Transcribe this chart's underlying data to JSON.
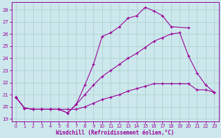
{
  "xlabel": "Windchill (Refroidissement éolien,°C)",
  "background_color": "#cce8ec",
  "grid_color": "#aacccc",
  "line_color": "#990099",
  "xlim": [
    -0.5,
    23.5
  ],
  "ylim": [
    18.8,
    28.6
  ],
  "x_ticks": [
    0,
    1,
    2,
    3,
    4,
    5,
    6,
    7,
    8,
    9,
    10,
    11,
    12,
    13,
    14,
    15,
    16,
    17,
    18,
    19,
    20,
    21,
    22,
    23
  ],
  "y_ticks": [
    19,
    20,
    21,
    22,
    23,
    24,
    25,
    26,
    27,
    28
  ],
  "line1": {
    "x": [
      0,
      1,
      2,
      3,
      4,
      5,
      6,
      7,
      8,
      9,
      10,
      11,
      12,
      13,
      14,
      15,
      16,
      17,
      18,
      19,
      20,
      21,
      22,
      23
    ],
    "y": [
      20.8,
      19.9,
      19.8,
      19.8,
      19.8,
      19.8,
      19.8,
      19.8,
      20.0,
      20.3,
      20.6,
      20.8,
      21.0,
      21.3,
      21.5,
      21.7,
      21.9,
      21.9,
      21.9,
      21.9,
      21.9,
      21.4,
      21.4,
      21.2
    ]
  },
  "line2": {
    "x": [
      0,
      1,
      2,
      3,
      4,
      5,
      6,
      7,
      8,
      9,
      10,
      11,
      12,
      13,
      14,
      15,
      16,
      17,
      18,
      19,
      20,
      21,
      22,
      23
    ],
    "y": [
      20.8,
      19.9,
      19.8,
      19.8,
      19.8,
      19.8,
      19.5,
      20.2,
      21.0,
      21.8,
      22.5,
      23.0,
      23.5,
      24.0,
      24.4,
      24.9,
      25.4,
      25.7,
      26.0,
      26.1,
      24.2,
      22.8,
      21.8,
      21.2
    ]
  },
  "line3": {
    "x": [
      0,
      1,
      2,
      3,
      4,
      5,
      6,
      7,
      8,
      9,
      10,
      11,
      12,
      13,
      14,
      15,
      16,
      17,
      18,
      20
    ],
    "y": [
      20.8,
      19.9,
      19.8,
      19.8,
      19.8,
      19.8,
      19.5,
      20.2,
      21.8,
      23.5,
      25.8,
      26.1,
      26.6,
      27.3,
      27.5,
      28.2,
      27.9,
      27.5,
      26.6,
      26.5
    ]
  }
}
